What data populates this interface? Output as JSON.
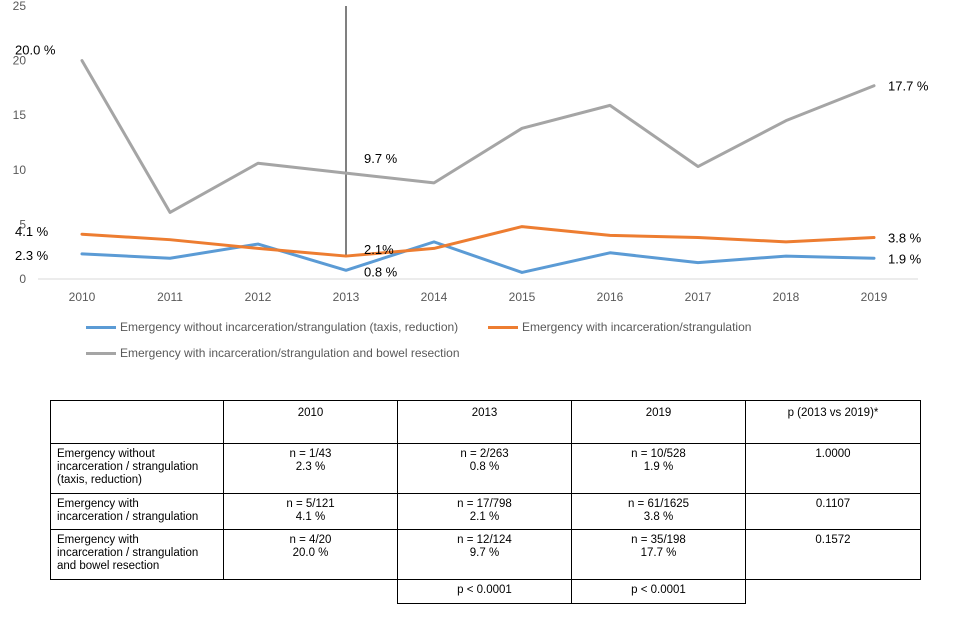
{
  "chart_data": {
    "type": "line",
    "categories": [
      "2010",
      "2011",
      "2012",
      "2013",
      "2014",
      "2015",
      "2016",
      "2017",
      "2018",
      "2019"
    ],
    "ylim": [
      0,
      25
    ],
    "yticks": [
      0,
      5,
      10,
      15,
      20,
      25
    ],
    "grid": false,
    "marker_year": "2013",
    "series": [
      {
        "name": "Emergency without incarceration/strangulation (taxis, reduction)",
        "color": "#5B9BD5",
        "values": [
          2.3,
          1.9,
          3.2,
          0.8,
          3.4,
          0.6,
          2.4,
          1.5,
          2.1,
          1.9
        ]
      },
      {
        "name": "Emergency with incarceration/strangulation",
        "color": "#ED7D31",
        "values": [
          4.1,
          3.6,
          2.8,
          2.1,
          2.8,
          4.8,
          4.0,
          3.8,
          3.4,
          3.8
        ]
      },
      {
        "name": "Emergency with incarceration/strangulation and bowel resection",
        "color": "#A5A5A5",
        "values": [
          20.0,
          6.1,
          10.6,
          9.7,
          8.8,
          13.8,
          15.9,
          10.3,
          14.5,
          17.7
        ]
      }
    ],
    "annotations": [
      {
        "series": 2,
        "index": 0,
        "text": "20.0 %"
      },
      {
        "series": 2,
        "index": 3,
        "text": "9.7 %"
      },
      {
        "series": 2,
        "index": 9,
        "text": "17.7 %"
      },
      {
        "series": 1,
        "index": 0,
        "text": "4.1 %"
      },
      {
        "series": 1,
        "index": 3,
        "text": "2.1%"
      },
      {
        "series": 1,
        "index": 9,
        "text": "3.8 %"
      },
      {
        "series": 0,
        "index": 0,
        "text": "2.3 %"
      },
      {
        "series": 0,
        "index": 3,
        "text": "0.8 %"
      },
      {
        "series": 0,
        "index": 9,
        "text": "1.9 %"
      }
    ]
  },
  "table": {
    "headers": [
      "",
      "2010",
      "2013",
      "2019",
      "p (2013 vs 2019)*"
    ],
    "rows": [
      {
        "label": [
          "Emergency without",
          "incarceration / strangulation",
          "(taxis, reduction)"
        ],
        "cells": [
          [
            "n = 1/43",
            "2.3 %"
          ],
          [
            "n = 2/263",
            "0.8 %"
          ],
          [
            "n = 10/528",
            "1.9 %"
          ]
        ],
        "p": "1.0000"
      },
      {
        "label": [
          "Emergency with",
          "incarceration / strangulation"
        ],
        "cells": [
          [
            "n = 5/121",
            "4.1 %"
          ],
          [
            "n = 17/798",
            "2.1 %"
          ],
          [
            "n = 61/1625",
            "3.8 %"
          ]
        ],
        "p": "0.1107"
      },
      {
        "label": [
          "Emergency with",
          "incarceration / strangulation",
          "and bowel resection"
        ],
        "cells": [
          [
            "n = 4/20",
            "20.0 %"
          ],
          [
            "n = 12/124",
            "9.7 %"
          ],
          [
            "n = 35/198",
            "17.7 %"
          ]
        ],
        "p": "0.1572"
      }
    ],
    "footer": [
      "p < 0.0001",
      "p < 0.0001"
    ]
  }
}
